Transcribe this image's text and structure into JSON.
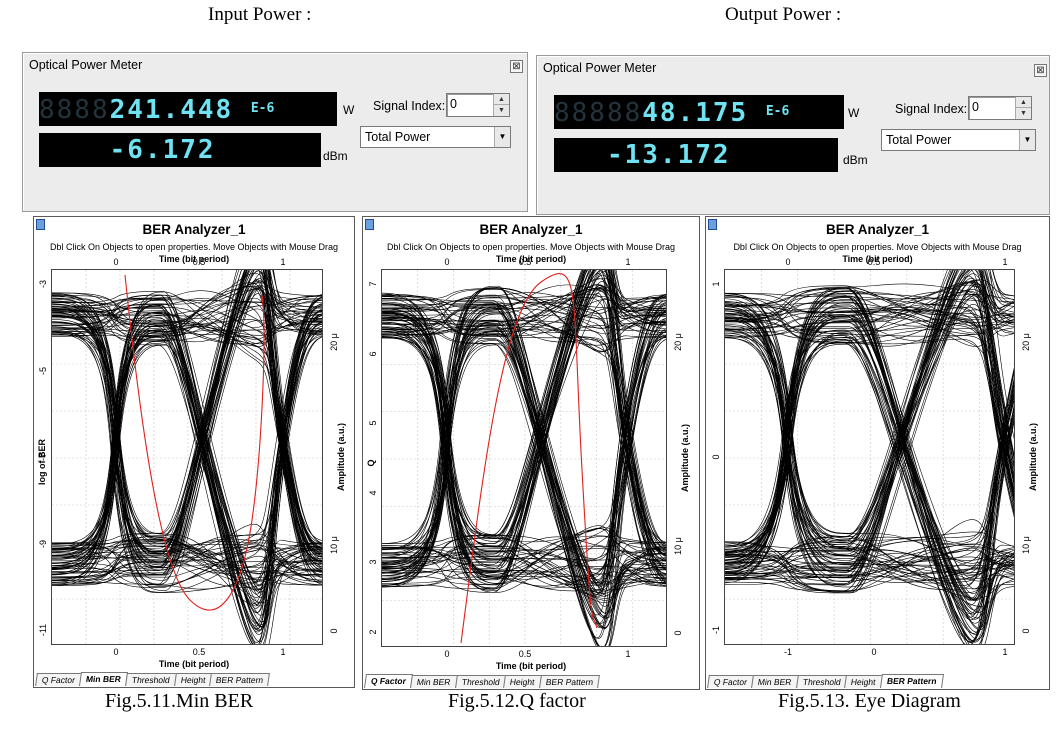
{
  "captions": {
    "input_power": "Input Power :",
    "output_power": "Output Power :",
    "fig_min_ber": "Fig.5.11.Min BER",
    "fig_q_factor": "Fig.5.12.Q factor",
    "fig_eye": "Fig.5.13. Eye Diagram"
  },
  "meters": [
    {
      "title": "Optical Power Meter",
      "power_w": "241.448",
      "power_exp": "E-6",
      "power_unit": "W",
      "power_dbm": "-6.172",
      "dbm_unit": "dBm",
      "signal_index_label": "Signal Index:",
      "signal_index_value": "0",
      "mode": "Total Power"
    },
    {
      "title": "Optical Power Meter",
      "power_w": "48.175",
      "power_exp": "E-6",
      "power_unit": "W",
      "power_dbm": "-13.172",
      "dbm_unit": "dBm",
      "signal_index_label": "Signal Index:",
      "signal_index_value": "0",
      "mode": "Total Power"
    }
  ],
  "analyzers": [
    {
      "title": "BER Analyzer_1",
      "hint": "Dbl Click On Objects to open properties.  Move Objects with Mouse Drag",
      "top_axis_label": "Time (bit period)",
      "bottom_axis_label": "Time (bit period)",
      "left_axis_label": "log of BER",
      "right_axis_label": "Amplitude (a.u.)",
      "top_ticks": [
        "0",
        "0.5",
        "1"
      ],
      "bottom_ticks": [
        "0",
        "0.5",
        "1"
      ],
      "left_ticks": [
        "-3",
        "-5",
        "-7",
        "-9",
        "-11"
      ],
      "right_ticks": [
        "20 μ",
        "10 μ",
        "0"
      ],
      "tabs": [
        "Q Factor",
        "Min BER",
        "Threshold",
        "Height",
        "BER Pattern"
      ],
      "active_tab": 1
    },
    {
      "title": "BER Analyzer_1",
      "hint": "Dbl Click On Objects to open properties.  Move Objects with Mouse Drag",
      "top_axis_label": "Time (bit period)",
      "bottom_axis_label": "Time (bit period)",
      "left_axis_label": "Q",
      "right_axis_label": "Amplitude (a.u.)",
      "top_ticks": [
        "0",
        "0.5",
        "1"
      ],
      "bottom_ticks": [
        "0",
        "0.5",
        "1"
      ],
      "left_ticks": [
        "7",
        "6",
        "5",
        "4",
        "3",
        "2"
      ],
      "right_ticks": [
        "20 μ",
        "10 μ",
        "0"
      ],
      "tabs": [
        "Q Factor",
        "Min BER",
        "Threshold",
        "Height",
        "BER Pattern"
      ],
      "active_tab": 0
    },
    {
      "title": "BER Analyzer_1",
      "hint": "Dbl Click On Objects to open properties.  Move Objects with Mouse Drag",
      "top_axis_label": "Time (bit period)",
      "bottom_axis_label": "",
      "left_axis_label": "",
      "right_axis_label": "Amplitude (a.u.)",
      "top_ticks": [
        "0",
        "0.5",
        "1"
      ],
      "bottom_ticks": [
        "-1",
        "0",
        "1"
      ],
      "left_ticks": [
        "1",
        "0",
        "-1"
      ],
      "right_ticks": [
        "20 μ",
        "10 μ",
        "0"
      ],
      "tabs": [
        "Q Factor",
        "Min BER",
        "Threshold",
        "Height",
        "BER Pattern"
      ],
      "active_tab": 4
    }
  ],
  "colors": {
    "lcd_digits": "#6fe3f2",
    "eye_trace": "#000000",
    "overlay_curve": "#e0201c"
  }
}
